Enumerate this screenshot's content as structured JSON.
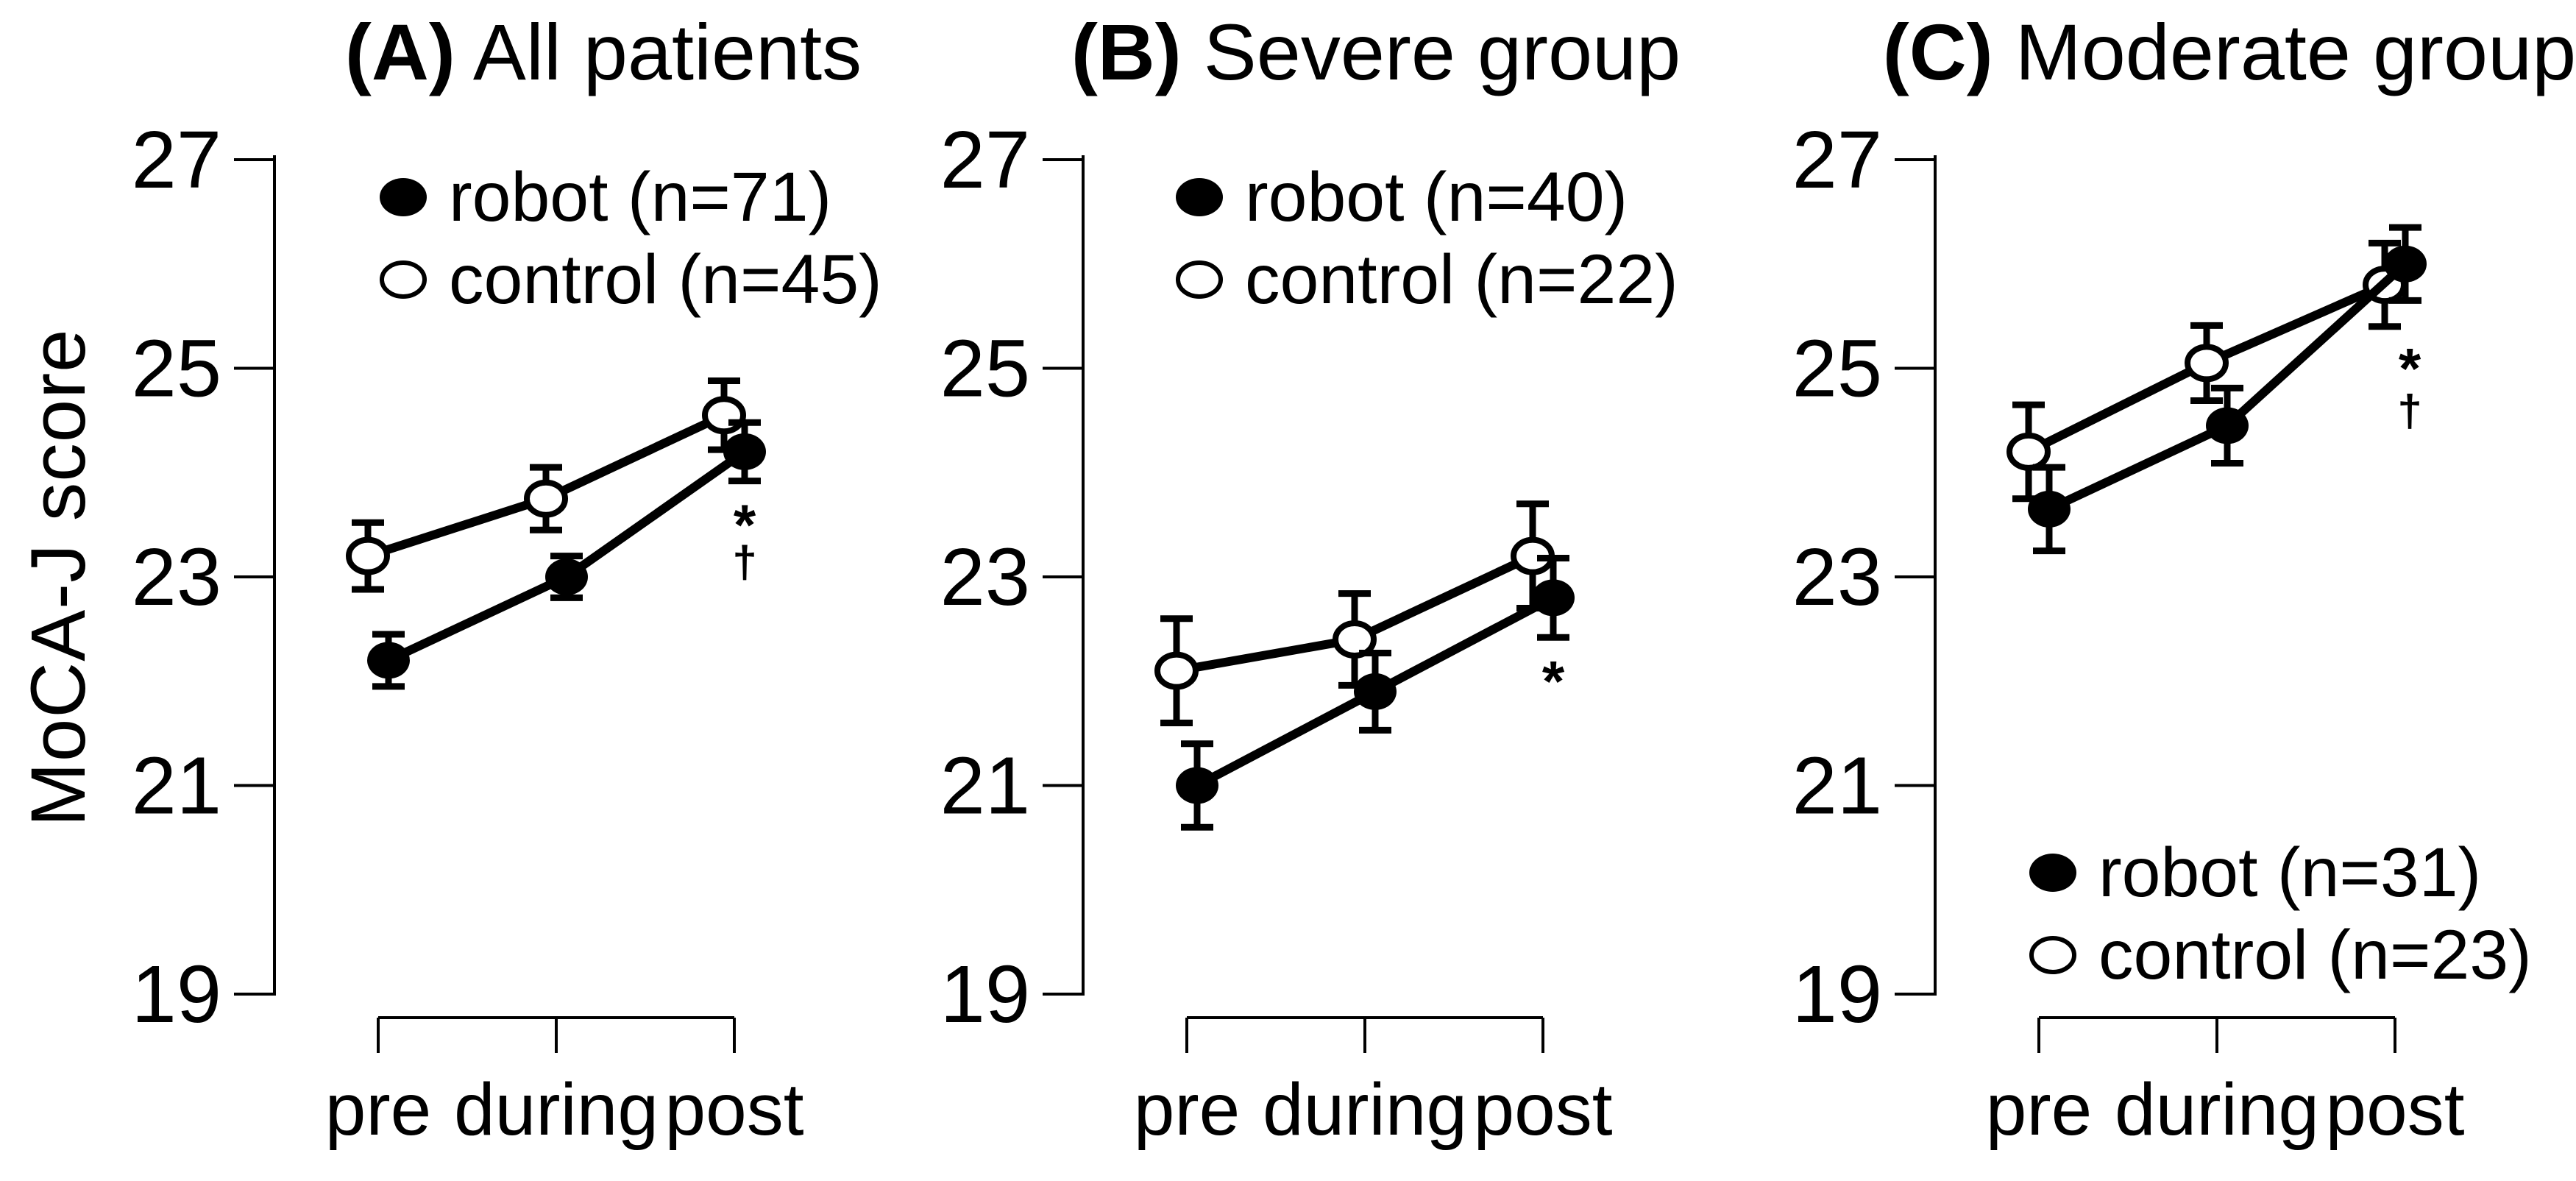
{
  "figure": {
    "background_color": "#ffffff",
    "foreground_color": "#000000",
    "y_axis_label": "MoCA-J score",
    "x_categories": [
      "pre",
      "during",
      "post"
    ]
  },
  "chart_data": [
    {
      "type": "line",
      "panel_label": "(A)",
      "title": "All patients",
      "x": [
        "pre",
        "during",
        "post"
      ],
      "ylabel": "MoCA-J score",
      "ylim": [
        19,
        27
      ],
      "y_ticks": [
        27,
        25,
        23,
        21,
        19
      ],
      "grid": false,
      "legend_position": "inside-top-left",
      "series": [
        {
          "name": "robot",
          "label": "robot (n=71)",
          "marker": "filled-circle",
          "color": "#000000",
          "values": [
            22.2,
            23.0,
            24.2
          ],
          "errors": [
            0.25,
            0.2,
            0.28
          ]
        },
        {
          "name": "control",
          "label": "control (n=45)",
          "marker": "open-circle",
          "color": "#000000",
          "values": [
            23.2,
            23.75,
            24.55
          ],
          "errors": [
            0.32,
            0.3,
            0.33
          ]
        }
      ],
      "annotations": [
        {
          "text": "*",
          "x": "post",
          "y": 23.6
        },
        {
          "text": "†",
          "x": "post",
          "y": 23.15
        }
      ]
    },
    {
      "type": "line",
      "panel_label": "(B)",
      "title": "Severe group",
      "x": [
        "pre",
        "during",
        "post"
      ],
      "ylabel": "MoCA-J score",
      "ylim": [
        19,
        27
      ],
      "y_ticks": [
        27,
        25,
        23,
        21,
        19
      ],
      "grid": false,
      "legend_position": "inside-top-left",
      "series": [
        {
          "name": "robot",
          "label": "robot (n=40)",
          "marker": "filled-circle",
          "color": "#000000",
          "values": [
            21.0,
            21.9,
            22.8
          ],
          "errors": [
            0.4,
            0.37,
            0.38
          ]
        },
        {
          "name": "control",
          "label": "control (n=22)",
          "marker": "open-circle",
          "color": "#000000",
          "values": [
            22.1,
            22.4,
            23.2
          ],
          "errors": [
            0.5,
            0.44,
            0.5
          ]
        }
      ],
      "annotations": [
        {
          "text": "*",
          "x": "post",
          "y": 22.1
        }
      ]
    },
    {
      "type": "line",
      "panel_label": "(C)",
      "title": "Moderate group",
      "x": [
        "pre",
        "during",
        "post"
      ],
      "ylabel": "MoCA-J score",
      "ylim": [
        19,
        27
      ],
      "y_ticks": [
        27,
        25,
        23,
        21,
        19
      ],
      "grid": false,
      "legend_position": "inside-bottom-left",
      "series": [
        {
          "name": "robot",
          "label": "robot (n=31)",
          "marker": "filled-circle",
          "color": "#000000",
          "values": [
            23.65,
            24.45,
            26.0
          ],
          "errors": [
            0.4,
            0.36,
            0.35
          ]
        },
        {
          "name": "control",
          "label": "control (n=23)",
          "marker": "open-circle",
          "color": "#000000",
          "values": [
            24.2,
            25.05,
            25.8
          ],
          "errors": [
            0.45,
            0.36,
            0.4
          ]
        }
      ],
      "annotations": [
        {
          "text": "*",
          "x": "post",
          "y": 25.1
        },
        {
          "text": "†",
          "x": "post",
          "y": 24.6
        }
      ]
    }
  ]
}
